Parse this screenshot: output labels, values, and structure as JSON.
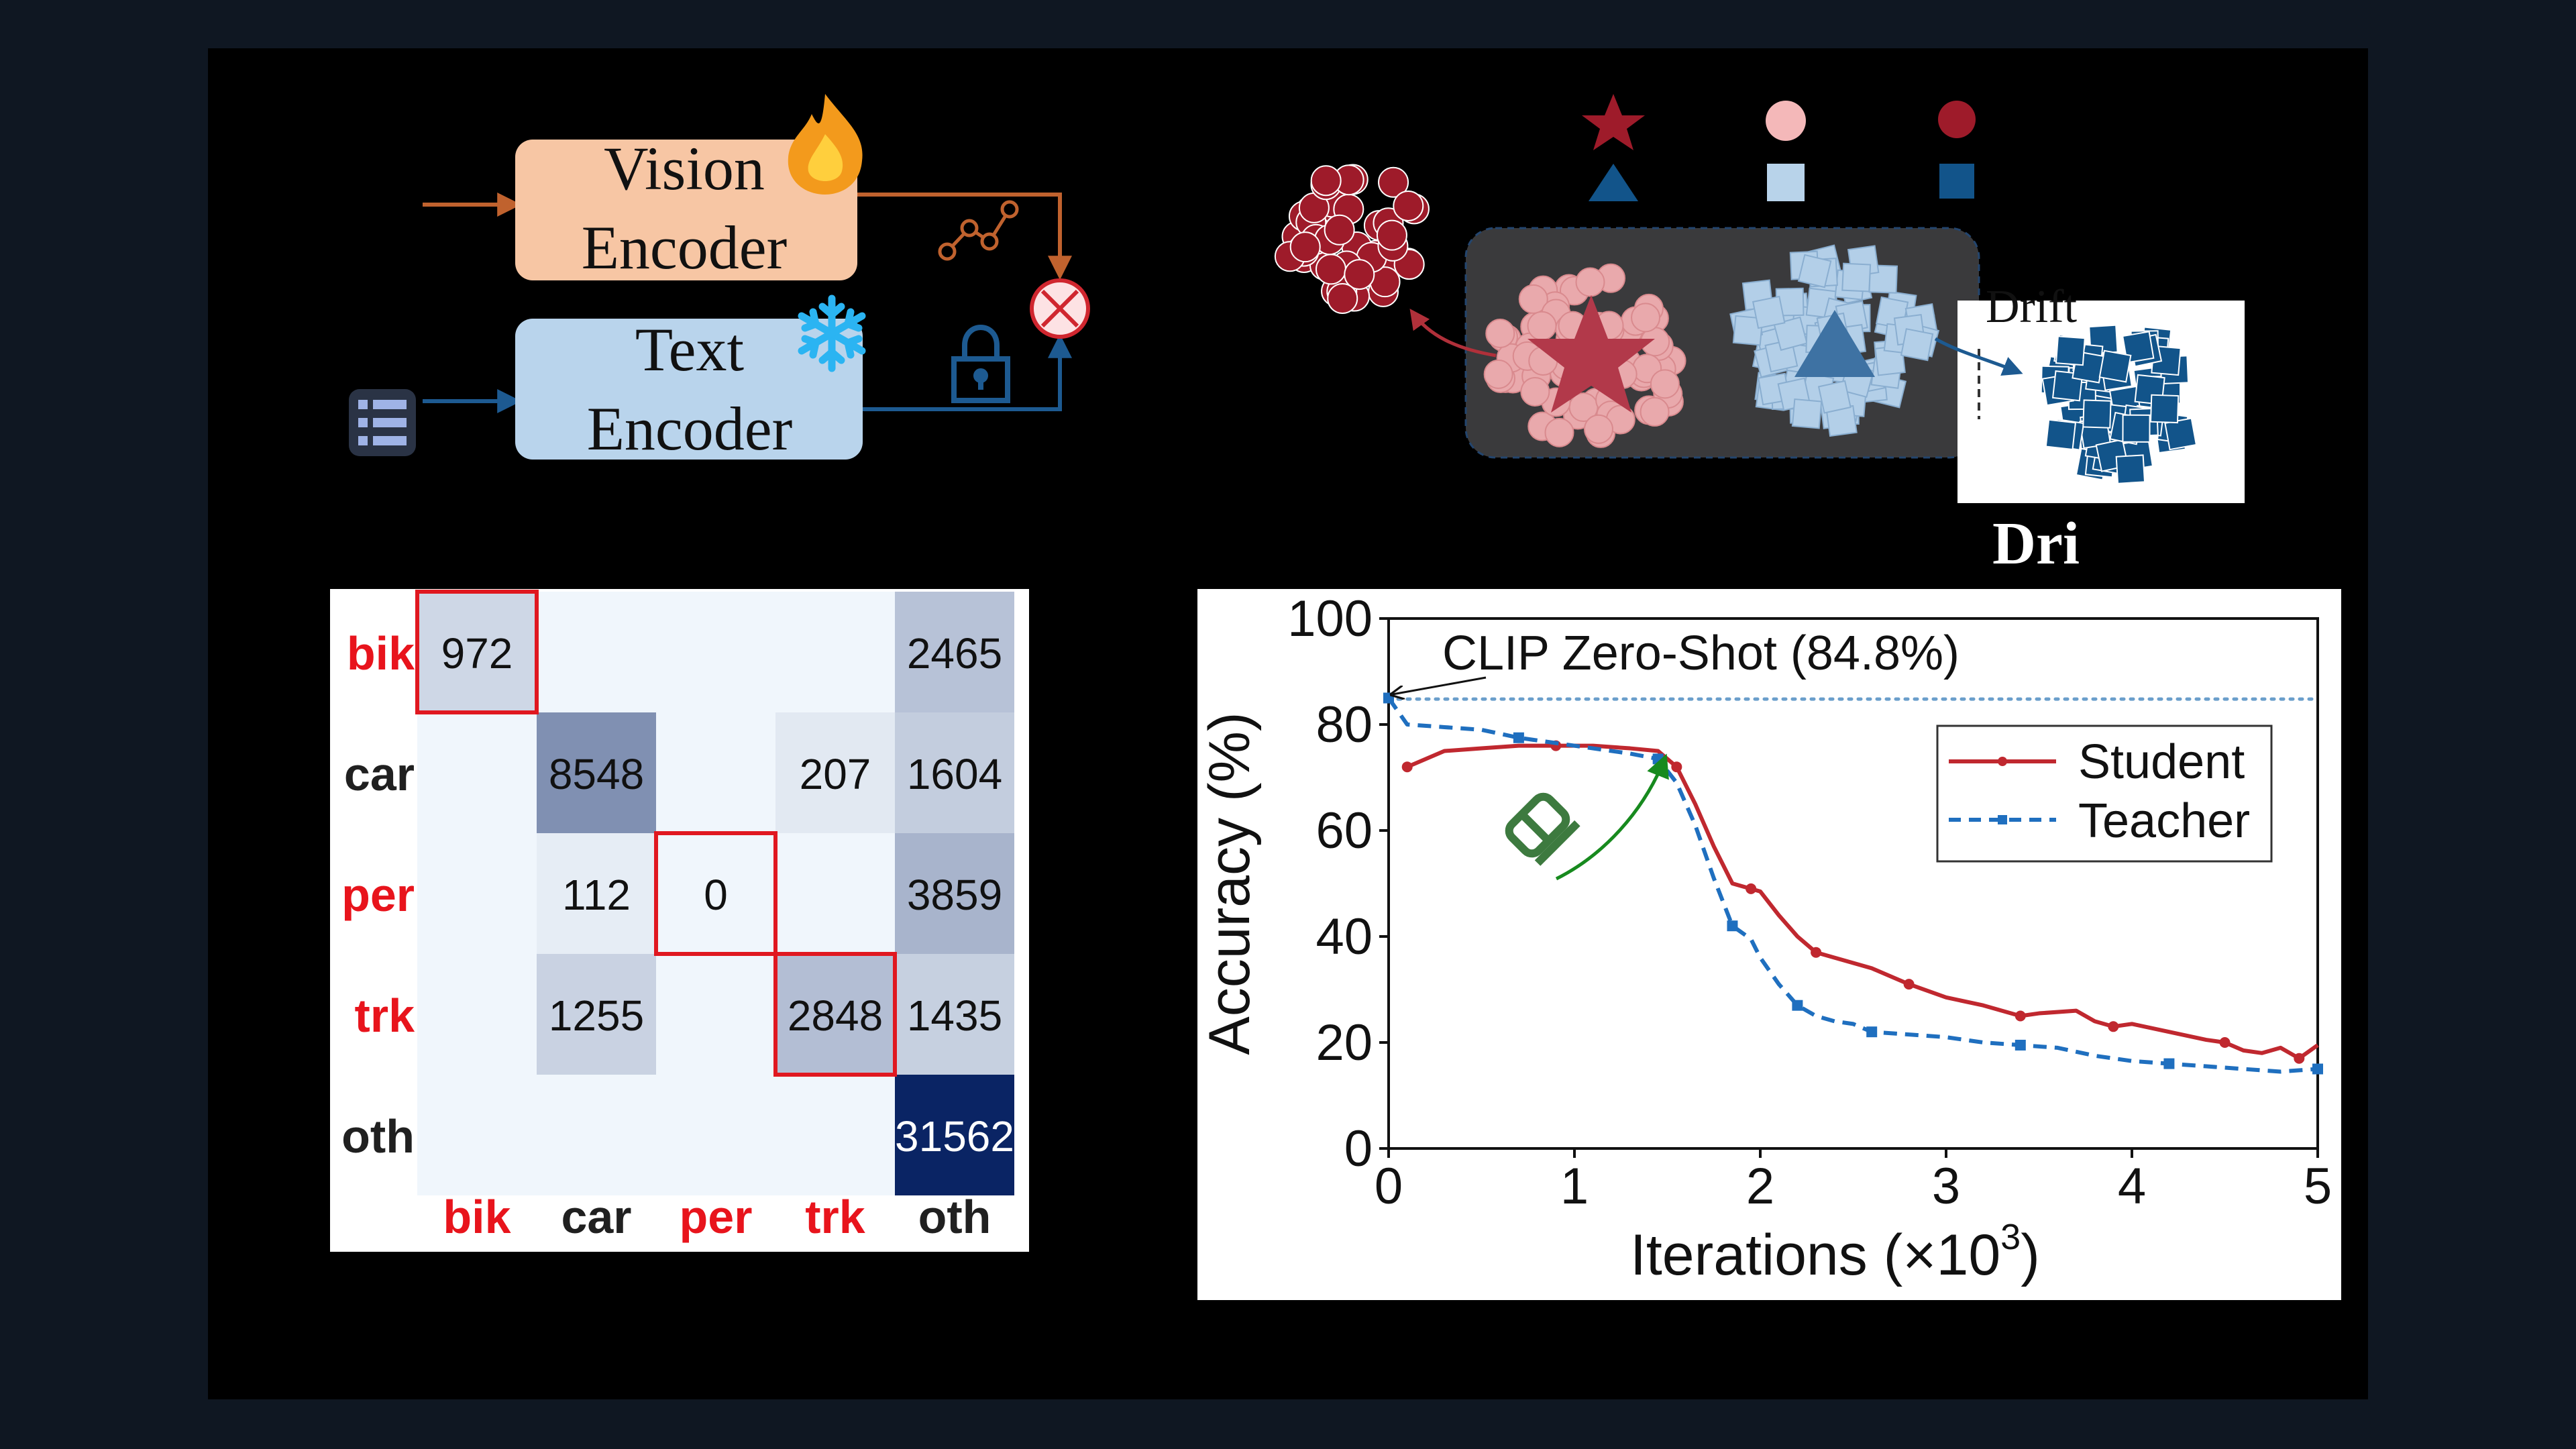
{
  "colors": {
    "background": "#0f1722",
    "panel": "#000000",
    "vision_box": "#f7c6a4",
    "text_box": "#b9d4ec",
    "vision_arrow": "#c0622e",
    "text_arrow": "#1d5a91",
    "red_class": "#9e1b2a",
    "pink": "#e9a9ac",
    "light_blue": "#b3cfe8",
    "dark_blue": "#12548a",
    "student": "#c0282f",
    "teacher": "#1f6fbf",
    "zero_shot": "#6a9ecb",
    "green_arrow": "#178a1e",
    "label_red": "#e8141c",
    "label_black": "#202020"
  },
  "panel_a": {
    "vision_encoder": [
      "Vision",
      "Encoder"
    ],
    "text_encoder": [
      "Text",
      "Encoder"
    ],
    "icons": [
      "fire-icon",
      "snowflake-icon",
      "graph-nodes-icon",
      "lock-icon",
      "text-list-icon",
      "multiply-circle-icon"
    ]
  },
  "panel_b": {
    "drift_label": "Drift",
    "bottom_fragment": "Dri",
    "icons": [
      "star-icon",
      "circle-icon",
      "triangle-icon",
      "square-icon"
    ]
  },
  "confusion_matrix": {
    "row_labels": [
      "bik",
      "car",
      "per",
      "trk",
      "oth"
    ],
    "col_labels": [
      "bik",
      "car",
      "per",
      "trk",
      "oth"
    ],
    "highlighted_labels": [
      "bik",
      "per",
      "trk"
    ],
    "cells": [
      [
        "972",
        "",
        "",
        "",
        "2465"
      ],
      [
        "",
        "8548",
        "",
        "207",
        "1604"
      ],
      [
        "",
        "112",
        "0",
        "",
        "3859"
      ],
      [
        "",
        "1255",
        "",
        "2848",
        "1435"
      ],
      [
        "",
        "",
        "",
        "",
        "31562"
      ]
    ],
    "highlighted_cells": [
      [
        0,
        0
      ],
      [
        2,
        2
      ],
      [
        3,
        3
      ]
    ]
  },
  "chart_data": {
    "type": "line",
    "xlabel": "Iterations (×10",
    "xlabel_sup": "3",
    "xlabel_close": ")",
    "ylabel": "Accuracy (%)",
    "xlim": [
      0,
      5
    ],
    "ylim": [
      0,
      100
    ],
    "xticks": [
      "0",
      "1",
      "2",
      "3",
      "4",
      "5"
    ],
    "yticks": [
      "0",
      "20",
      "40",
      "60",
      "80",
      "100"
    ],
    "legend_position": "top-right",
    "annotation": "CLIP Zero-Shot (84.8%)",
    "reference_line": 84.8,
    "series": [
      {
        "name": "Student",
        "style": "solid-dot",
        "x": [
          0.1,
          0.3,
          0.5,
          0.7,
          0.9,
          1.1,
          1.3,
          1.45,
          1.55,
          1.65,
          1.75,
          1.85,
          1.95,
          2.0,
          2.1,
          2.2,
          2.3,
          2.4,
          2.5,
          2.6,
          2.8,
          3.0,
          3.2,
          3.3,
          3.4,
          3.5,
          3.7,
          3.8,
          3.9,
          4.0,
          4.2,
          4.4,
          4.5,
          4.6,
          4.7,
          4.8,
          4.9,
          5.0
        ],
        "y": [
          72,
          75,
          75.5,
          76,
          76,
          76,
          75.5,
          75,
          72,
          65,
          57,
          50,
          49,
          48.5,
          44,
          40,
          37,
          36,
          35,
          34,
          31,
          28.5,
          27,
          26,
          25,
          25.5,
          26,
          24,
          23,
          23.5,
          22,
          20.5,
          20,
          18.5,
          18,
          19,
          17,
          19.5
        ]
      },
      {
        "name": "Teacher",
        "style": "dashed-square",
        "x": [
          0.0,
          0.1,
          0.3,
          0.5,
          0.7,
          0.9,
          1.1,
          1.3,
          1.45,
          1.55,
          1.65,
          1.75,
          1.85,
          1.95,
          2.0,
          2.1,
          2.2,
          2.3,
          2.4,
          2.5,
          2.6,
          2.8,
          3.0,
          3.2,
          3.4,
          3.6,
          3.8,
          4.0,
          4.2,
          4.4,
          4.6,
          4.8,
          5.0
        ],
        "y": [
          85,
          80,
          79.5,
          79,
          77.5,
          76.5,
          75.5,
          74.5,
          73.5,
          69,
          61,
          51,
          42,
          39.5,
          36,
          31,
          27,
          25,
          24,
          23.5,
          22,
          21.5,
          21,
          20,
          19.5,
          19,
          17.5,
          16.5,
          16,
          15.5,
          15,
          14.5,
          15
        ]
      }
    ]
  }
}
